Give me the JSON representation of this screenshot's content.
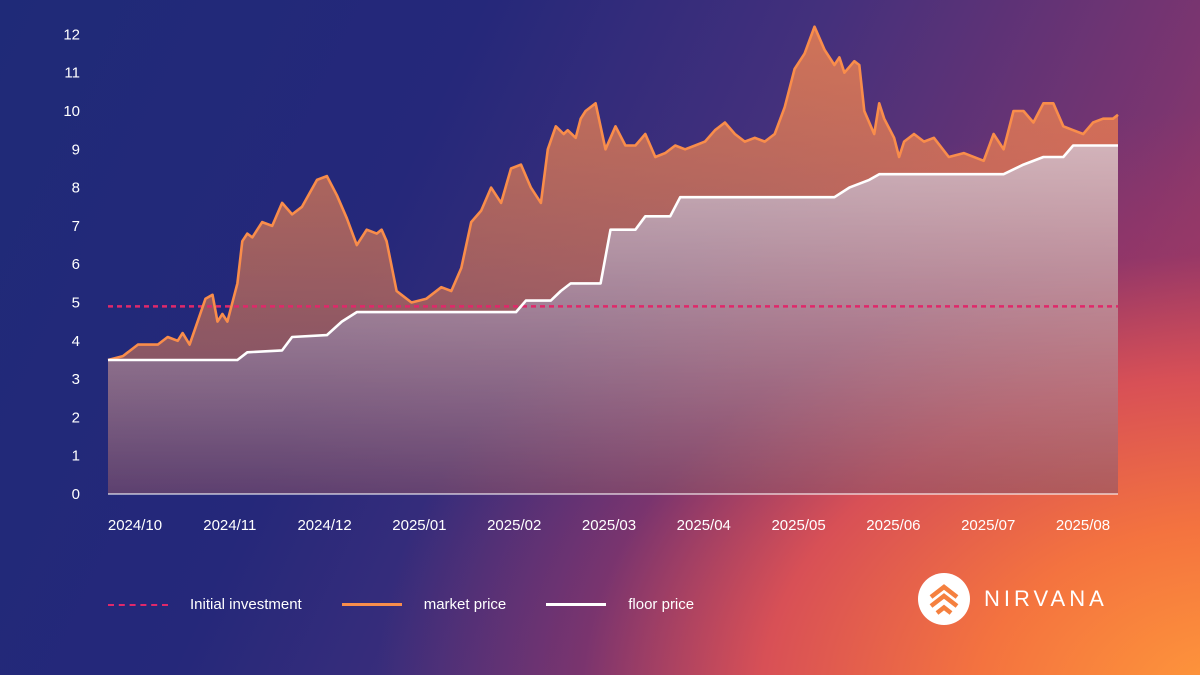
{
  "chart_data": {
    "type": "line",
    "title": "",
    "xlabel": "",
    "ylabel": "",
    "x_ticks": [
      "2024/10",
      "2024/11",
      "2024/12",
      "2025/01",
      "2025/02",
      "2025/03",
      "2025/04",
      "2025/05",
      "2025/06",
      "2025/07",
      "2025/08"
    ],
    "y_ticks": [
      "0",
      "1",
      "2",
      "3",
      "4",
      "5",
      "6",
      "7",
      "8",
      "9",
      "10",
      "11",
      "12"
    ],
    "ylim": [
      0,
      12.5
    ],
    "xlim": [
      0,
      10.15
    ],
    "grid": false,
    "legend_position": "bottom-left",
    "series": [
      {
        "name": "Initial investment",
        "color": "#e0286a",
        "style": "dashed",
        "x": [
          0,
          10.15
        ],
        "y": [
          4.9,
          4.9
        ]
      },
      {
        "name": "market price",
        "color": "#f98d4b",
        "style": "solid",
        "x": [
          0,
          0.15,
          0.3,
          0.5,
          0.6,
          0.7,
          0.75,
          0.82,
          0.9,
          0.98,
          1.05,
          1.1,
          1.15,
          1.2,
          1.3,
          1.35,
          1.4,
          1.45,
          1.55,
          1.65,
          1.75,
          1.85,
          1.95,
          2.1,
          2.2,
          2.3,
          2.4,
          2.5,
          2.6,
          2.7,
          2.75,
          2.8,
          2.9,
          2.95,
          3.05,
          3.2,
          3.35,
          3.45,
          3.55,
          3.65,
          3.75,
          3.85,
          3.95,
          4.05,
          4.15,
          4.25,
          4.35,
          4.42,
          4.5,
          4.58,
          4.62,
          4.7,
          4.75,
          4.8,
          4.9,
          5.0,
          5.1,
          5.2,
          5.3,
          5.4,
          5.5,
          5.6,
          5.7,
          5.8,
          5.9,
          6.0,
          6.1,
          6.2,
          6.3,
          6.4,
          6.5,
          6.6,
          6.7,
          6.8,
          6.9,
          7.0,
          7.1,
          7.2,
          7.3,
          7.35,
          7.4,
          7.5,
          7.55,
          7.6,
          7.7,
          7.75,
          7.8,
          7.9,
          7.95,
          8.0,
          8.1,
          8.2,
          8.3,
          8.45,
          8.6,
          8.8,
          8.9,
          9.0,
          9.1,
          9.2,
          9.3,
          9.4,
          9.5,
          9.6,
          9.7,
          9.8,
          9.9,
          10.0,
          10.1,
          10.15
        ],
        "y": [
          3.5,
          3.6,
          3.9,
          3.9,
          4.1,
          4.0,
          4.2,
          3.9,
          4.5,
          5.1,
          5.2,
          4.5,
          4.7,
          4.5,
          5.5,
          6.6,
          6.8,
          6.7,
          7.1,
          7.0,
          7.6,
          7.3,
          7.5,
          8.2,
          8.3,
          7.8,
          7.2,
          6.5,
          6.9,
          6.8,
          6.9,
          6.6,
          5.3,
          5.2,
          5.0,
          5.1,
          5.4,
          5.3,
          5.9,
          7.1,
          7.4,
          8.0,
          7.6,
          8.5,
          8.6,
          8.0,
          7.6,
          9.0,
          9.6,
          9.4,
          9.5,
          9.3,
          9.8,
          10.0,
          10.2,
          9.0,
          9.6,
          9.1,
          9.1,
          9.4,
          8.8,
          8.9,
          9.1,
          9.0,
          9.1,
          9.2,
          9.5,
          9.7,
          9.4,
          9.2,
          9.3,
          9.2,
          9.4,
          10.1,
          11.1,
          11.5,
          12.2,
          11.6,
          11.2,
          11.4,
          11.0,
          11.3,
          11.2,
          10.0,
          9.4,
          10.2,
          9.8,
          9.3,
          8.8,
          9.2,
          9.4,
          9.2,
          9.3,
          8.8,
          8.9,
          8.7,
          9.4,
          9.0,
          10.0,
          10.0,
          9.7,
          10.2,
          10.2,
          9.6,
          9.5,
          9.4,
          9.7,
          9.8,
          9.8,
          9.9
        ]
      },
      {
        "name": "floor price",
        "color": "#ffffff",
        "style": "solid",
        "x": [
          0,
          1.3,
          1.4,
          1.75,
          1.85,
          2.2,
          2.35,
          2.5,
          4.1,
          4.2,
          4.45,
          4.55,
          4.65,
          4.95,
          5.05,
          5.3,
          5.4,
          5.65,
          5.75,
          7.3,
          7.45,
          7.65,
          7.75,
          9.0,
          9.2,
          9.4,
          9.6,
          9.7,
          10.15
        ],
        "y": [
          3.5,
          3.5,
          3.7,
          3.75,
          4.1,
          4.15,
          4.5,
          4.75,
          4.75,
          5.05,
          5.05,
          5.3,
          5.5,
          5.5,
          6.9,
          6.9,
          7.25,
          7.25,
          7.75,
          7.75,
          8.0,
          8.2,
          8.35,
          8.35,
          8.6,
          8.8,
          8.8,
          9.1,
          9.1
        ]
      }
    ]
  },
  "brand": {
    "name": "NIRVANA",
    "icon": "nirvana-logo-icon"
  }
}
